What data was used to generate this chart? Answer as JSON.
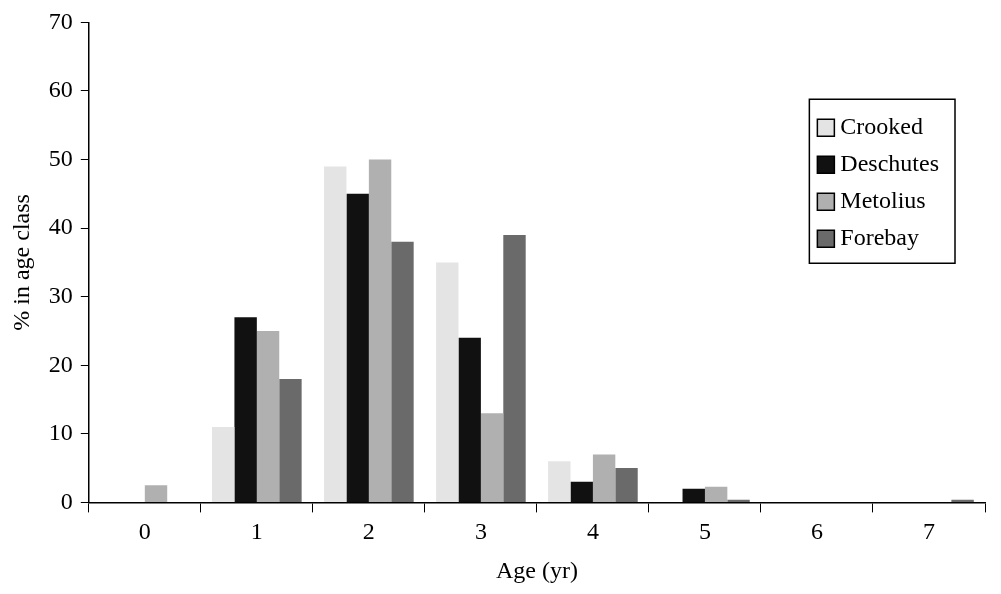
{
  "chart_data": {
    "type": "bar",
    "xlabel": "Age (yr)",
    "ylabel": "% in age class",
    "categories": [
      "0",
      "1",
      "2",
      "3",
      "4",
      "5",
      "6",
      "7"
    ],
    "series": [
      {
        "name": "Crooked",
        "color": "#e4e4e4",
        "values": [
          0,
          11,
          49,
          35,
          6,
          0,
          0,
          0
        ]
      },
      {
        "name": "Deschutes",
        "color": "#111111",
        "values": [
          0,
          27,
          45,
          24,
          3,
          2,
          0,
          0
        ]
      },
      {
        "name": "Metolius",
        "color": "#b0b0b0",
        "values": [
          2.5,
          25,
          50,
          13,
          7,
          2.3,
          0,
          0
        ]
      },
      {
        "name": "Forebay",
        "color": "#6a6a6a",
        "values": [
          0,
          18,
          38,
          39,
          5,
          0.4,
          0,
          0.4
        ]
      }
    ],
    "ylim": [
      0,
      70
    ],
    "yticks": [
      0,
      10,
      20,
      30,
      40,
      50,
      60,
      70
    ],
    "grid": false,
    "legend": "right"
  }
}
